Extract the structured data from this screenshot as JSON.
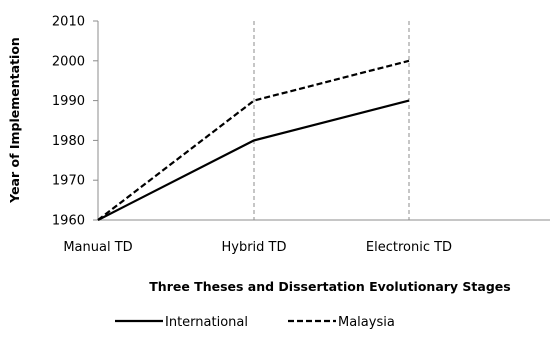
{
  "chart_data": {
    "type": "line",
    "categories": [
      "Manual TD",
      "Hybrid TD",
      "Electronic TD"
    ],
    "series": [
      {
        "name": "International",
        "values": [
          1960,
          1980,
          1990
        ],
        "style": "solid",
        "color": "#000000"
      },
      {
        "name": "Malaysia",
        "values": [
          1960,
          1990,
          2000
        ],
        "style": "dashed",
        "color": "#000000"
      }
    ],
    "xlabel": "Three Theses and Dissertation Evolutionary Stages",
    "ylabel": "Year of Implementation",
    "ylim": [
      1960,
      2010
    ],
    "yticks": [
      1960,
      1970,
      1980,
      1990,
      2000,
      2010
    ],
    "grid": "vertical dashed lines at category positions",
    "legend_position": "bottom"
  }
}
